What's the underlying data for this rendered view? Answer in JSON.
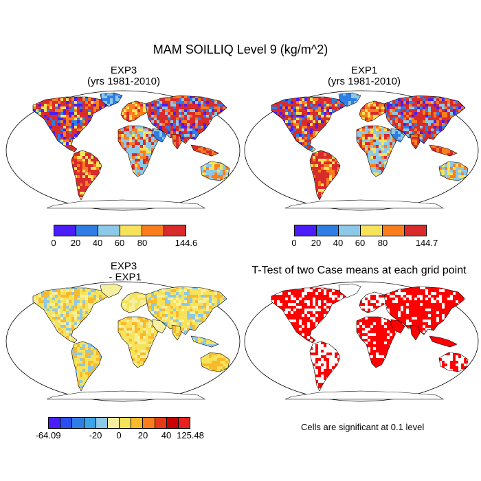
{
  "figure": {
    "title": "MAM SOILLIQ Level 9 (kg/m^2)",
    "note": "Cells are significant at 0.1 level"
  },
  "panels": [
    {
      "key": "exp3",
      "title_line1": "EXP3",
      "title_line2": "(yrs 1981-2010)",
      "colorbar": {
        "colors": [
          "#4a1dfa",
          "#2f7ee6",
          "#8cc8e8",
          "#f6e35a",
          "#fb7d1c",
          "#d92b2b"
        ],
        "ticks": [
          "0",
          "20",
          "40",
          "60",
          "80",
          "144.6"
        ]
      }
    },
    {
      "key": "exp1",
      "title_line1": "EXP1",
      "title_line2": "(yrs 1981-2010)",
      "colorbar": {
        "colors": [
          "#4a1dfa",
          "#2f7ee6",
          "#8cc8e8",
          "#f6e35a",
          "#fb7d1c",
          "#d92b2b"
        ],
        "ticks": [
          "0",
          "20",
          "40",
          "60",
          "80",
          "144.7"
        ]
      }
    },
    {
      "key": "diff",
      "title_line1": "EXP3",
      "title_line2": " - EXP1",
      "colorbar": {
        "colors": [
          "#4a1dfa",
          "#2a4ff0",
          "#2f7ee6",
          "#39a4ea",
          "#8cc8e8",
          "#f6efa0",
          "#f6e35a",
          "#fbb82c",
          "#fb7d1c",
          "#e63a16",
          "#cc0000",
          "#e8201e"
        ],
        "ticks": [
          "-64.09",
          "-20",
          "0",
          "20",
          "40",
          "125.48"
        ]
      }
    },
    {
      "key": "ttest",
      "title_line1": "T-Test of two Case means at each grid point",
      "title_line2": ""
    }
  ],
  "map": {
    "projection": "Robinson",
    "ocean_color": "#ffffff",
    "land_outline": "#000000",
    "significance_color": "#ff0000"
  }
}
